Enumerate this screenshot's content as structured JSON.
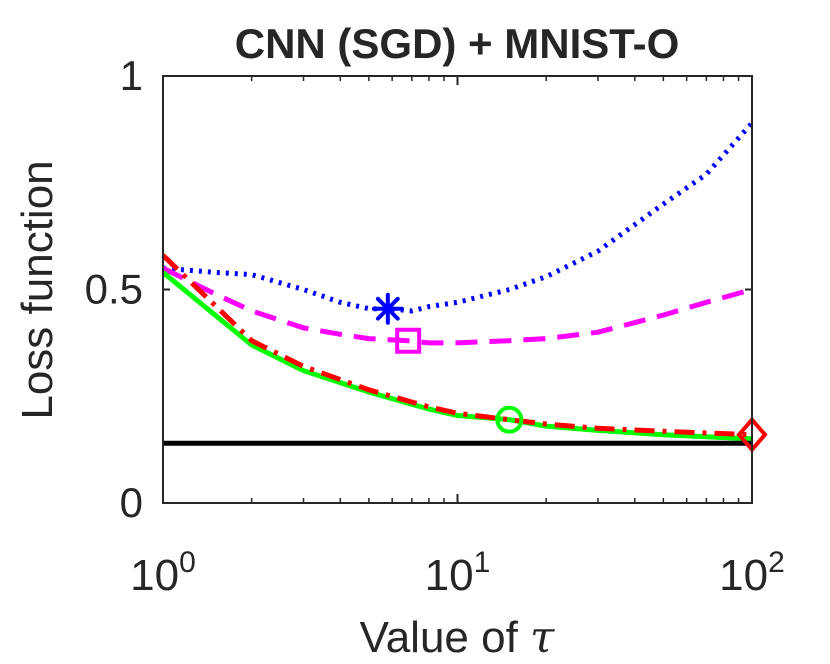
{
  "chart_data": {
    "type": "line",
    "title": "CNN (SGD) + MNIST-O",
    "xlabel": "Value of",
    "xlabel_symbol": "τ",
    "ylabel": "Loss function",
    "xscale": "log",
    "xlim": [
      1,
      100
    ],
    "ylim": [
      0,
      1
    ],
    "x_ticks": [
      {
        "value": 1,
        "base": "10",
        "exp": "0"
      },
      {
        "value": 10,
        "base": "10",
        "exp": "1"
      },
      {
        "value": 100,
        "base": "10",
        "exp": "2"
      }
    ],
    "y_ticks": [
      {
        "value": 0,
        "label": "0"
      },
      {
        "value": 0.5,
        "label": "0.5"
      },
      {
        "value": 1,
        "label": "1"
      }
    ],
    "colors": {
      "axis": "#262626",
      "background": "#ffffff"
    },
    "series": [
      {
        "name": "blue-dotted",
        "color": "#0000ff",
        "dash": "dotted",
        "x": [
          1,
          1.5,
          2,
          3,
          4,
          5,
          5.8,
          7,
          8,
          10,
          15,
          20,
          30,
          50,
          70,
          100
        ],
        "y": [
          0.55,
          0.54,
          0.535,
          0.5,
          0.47,
          0.455,
          0.455,
          0.45,
          0.46,
          0.47,
          0.5,
          0.53,
          0.59,
          0.7,
          0.77,
          0.89
        ],
        "marker": {
          "shape": "asterisk",
          "x": 5.8,
          "y": 0.455
        }
      },
      {
        "name": "magenta-dashed",
        "color": "#ff00ff",
        "dash": "dashed",
        "x": [
          1,
          1.5,
          2,
          3,
          4,
          5,
          6.8,
          8,
          10,
          15,
          20,
          30,
          50,
          70,
          100
        ],
        "y": [
          0.55,
          0.49,
          0.45,
          0.41,
          0.395,
          0.385,
          0.38,
          0.375,
          0.375,
          0.38,
          0.385,
          0.4,
          0.44,
          0.47,
          0.5
        ],
        "marker": {
          "shape": "square",
          "x": 6.8,
          "y": 0.38
        }
      },
      {
        "name": "green-solid",
        "color": "#00ff00",
        "dash": "solid",
        "x": [
          1,
          2,
          3,
          5,
          8,
          10,
          15,
          20,
          30,
          50,
          70,
          100
        ],
        "y": [
          0.54,
          0.37,
          0.31,
          0.26,
          0.22,
          0.205,
          0.195,
          0.18,
          0.17,
          0.16,
          0.155,
          0.15
        ],
        "marker": {
          "shape": "circle",
          "x": 15,
          "y": 0.195
        }
      },
      {
        "name": "red-dashdot",
        "color": "#ff0000",
        "dash": "dashdot",
        "x": [
          1,
          2,
          3,
          5,
          8,
          10,
          15,
          20,
          30,
          50,
          70,
          100
        ],
        "y": [
          0.58,
          0.38,
          0.32,
          0.265,
          0.225,
          0.21,
          0.195,
          0.185,
          0.175,
          0.168,
          0.164,
          0.16
        ],
        "marker": {
          "shape": "diamond",
          "x": 100,
          "y": 0.16
        }
      },
      {
        "name": "black-baseline",
        "color": "#000000",
        "dash": "solid",
        "x": [
          1,
          100
        ],
        "y": [
          0.14,
          0.14
        ]
      }
    ]
  }
}
